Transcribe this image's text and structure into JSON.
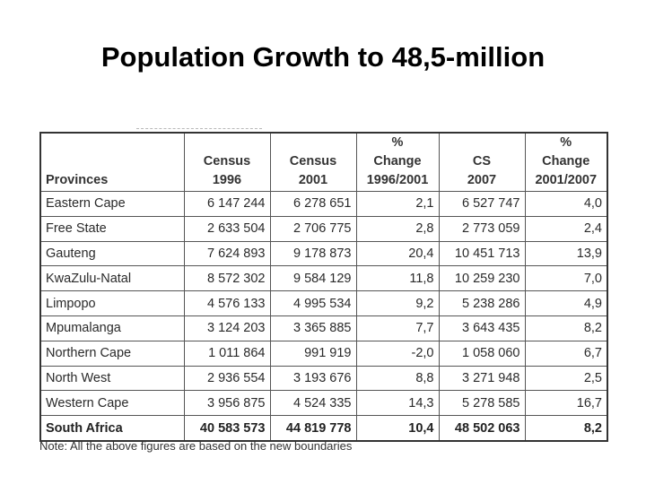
{
  "title": "Population Growth to 48,5-million",
  "table": {
    "headers": [
      [
        "Provinces"
      ],
      [
        "Census",
        "1996"
      ],
      [
        "Census",
        "2001"
      ],
      [
        "%",
        "Change",
        "1996/2001"
      ],
      [
        "CS",
        "2007"
      ],
      [
        "%",
        "Change",
        "2001/2007"
      ]
    ],
    "rows": [
      [
        "Eastern Cape",
        "6 147 244",
        "6 278 651",
        "2,1",
        "6 527 747",
        "4,0"
      ],
      [
        "Free State",
        "2 633 504",
        "2 706 775",
        "2,8",
        "2 773 059",
        "2,4"
      ],
      [
        "Gauteng",
        "7 624 893",
        "9 178 873",
        "20,4",
        "10 451 713",
        "13,9"
      ],
      [
        "KwaZulu-Natal",
        "8 572 302",
        "9 584 129",
        "11,8",
        "10 259 230",
        "7,0"
      ],
      [
        "Limpopo",
        "4 576 133",
        "4 995 534",
        "9,2",
        "5 238 286",
        "4,9"
      ],
      [
        "Mpumalanga",
        "3 124 203",
        "3 365 885",
        "7,7",
        "3 643 435",
        "8,2"
      ],
      [
        "Northern Cape",
        "1 011 864",
        "991 919",
        "-2,0",
        "1 058 060",
        "6,7"
      ],
      [
        "North West",
        "2 936 554",
        "3 193 676",
        "8,8",
        "3 271 948",
        "2,5"
      ],
      [
        "Western Cape",
        "3 956 875",
        "4 524 335",
        "14,3",
        "5 278 585",
        "16,7"
      ]
    ],
    "total": [
      "South Africa",
      "40 583 573",
      "44 819 778",
      "10,4",
      "48 502 063",
      "8,2"
    ]
  },
  "note": "Note: All the above figures are based on the new boundaries"
}
